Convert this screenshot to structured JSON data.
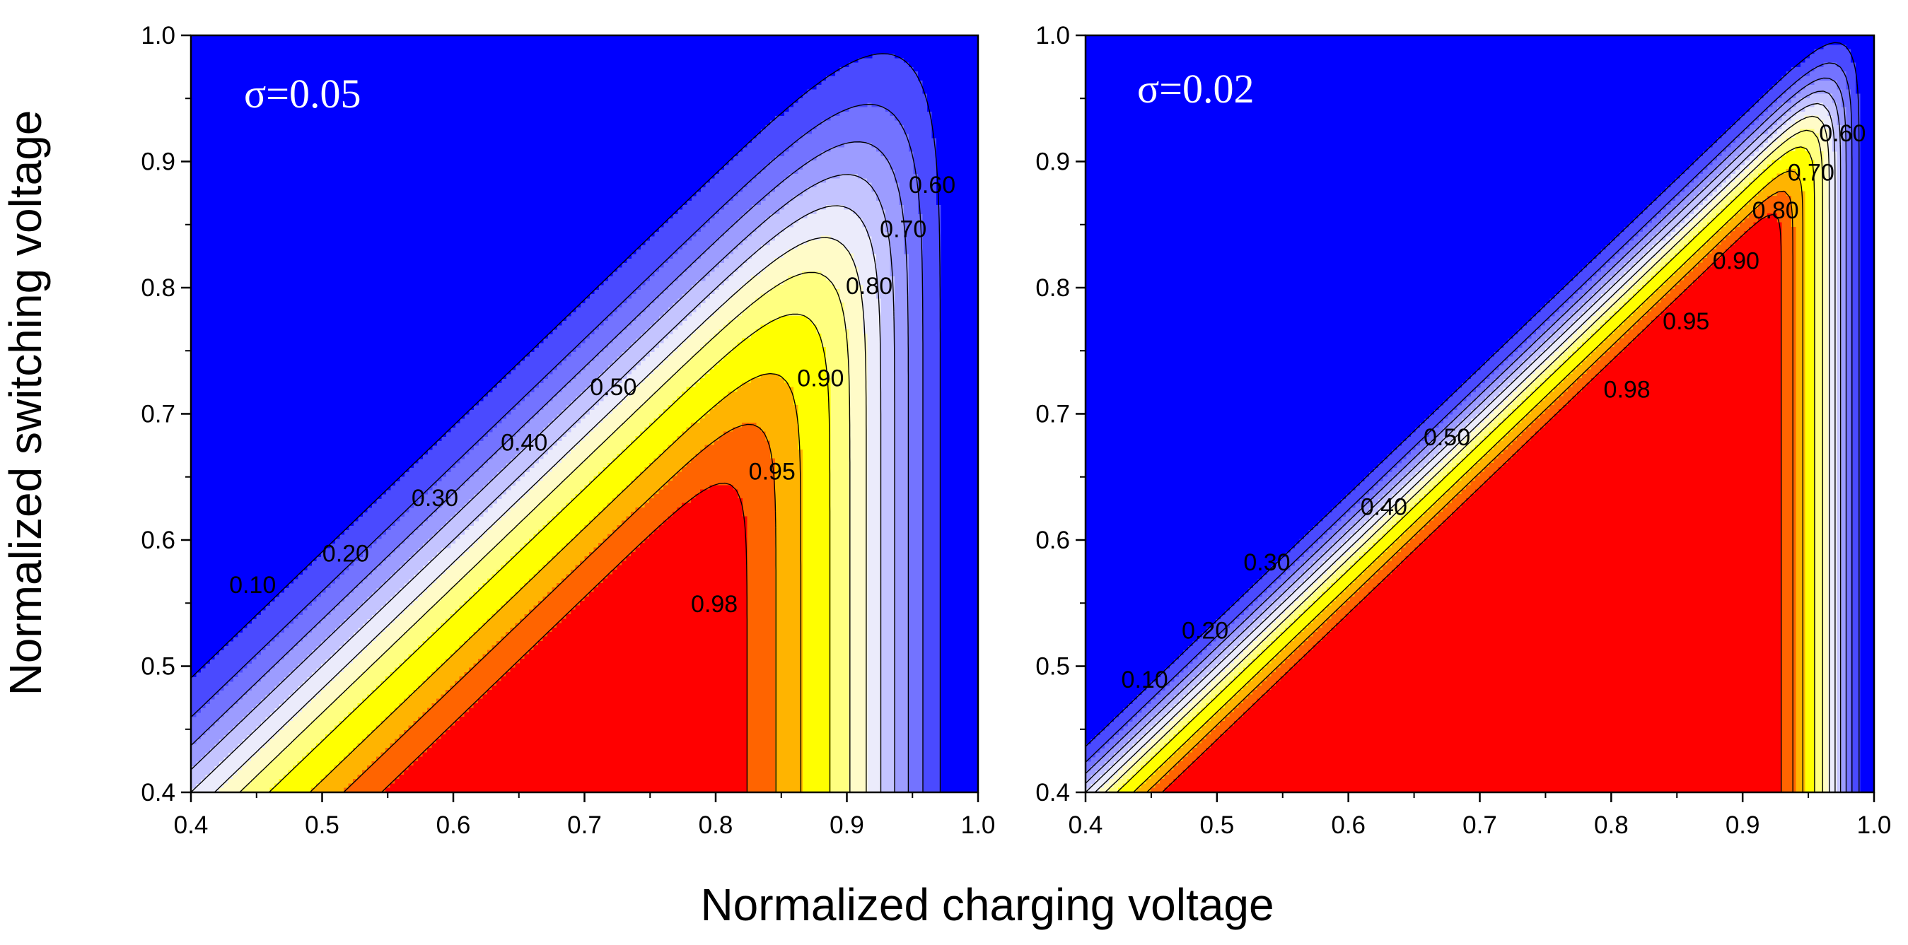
{
  "figure": {
    "ylabel": "Normalized switching voltage",
    "xlabel": "Normalized charging voltage"
  },
  "colors": {
    "background_region": "#0000ff",
    "contour_line": "#000000",
    "levels": {
      "0.10": "#2525ff",
      "0.20": "#4a4aff",
      "0.30": "#7373ff",
      "0.40": "#9c9cff",
      "0.50": "#c4c4ff",
      "0.60": "#ebebfb",
      "0.70": "#fffbc8",
      "0.80": "#ffff80",
      "0.90": "#ffff00",
      "0.95": "#ffb400",
      "0.98": "#ff6400",
      "1.00": "#ff0000"
    }
  },
  "chart_data": [
    {
      "type": "contour",
      "annotation": "σ=0.05",
      "sigma": 0.05,
      "xlabel": "Normalized charging voltage",
      "ylabel": "Normalized switching voltage",
      "xlim": [
        0.4,
        1.0
      ],
      "ylim": [
        0.4,
        1.0
      ],
      "xticks": [
        "0.4",
        "0.5",
        "0.6",
        "0.7",
        "0.8",
        "0.9",
        "1.0"
      ],
      "yticks": [
        "0.4",
        "0.5",
        "0.6",
        "0.7",
        "0.8",
        "0.9",
        "1.0"
      ],
      "levels": [
        0.1,
        0.2,
        0.3,
        0.4,
        0.5,
        0.6,
        0.7,
        0.8,
        0.9,
        0.95,
        0.98
      ],
      "contour_labels": [
        {
          "text": "0.10",
          "x": 0.447,
          "y": 0.563
        },
        {
          "text": "0.20",
          "x": 0.518,
          "y": 0.588
        },
        {
          "text": "0.30",
          "x": 0.586,
          "y": 0.632
        },
        {
          "text": "0.40",
          "x": 0.654,
          "y": 0.676
        },
        {
          "text": "0.50",
          "x": 0.722,
          "y": 0.72
        },
        {
          "text": "0.60",
          "x": 0.965,
          "y": 0.88
        },
        {
          "text": "0.70",
          "x": 0.943,
          "y": 0.845
        },
        {
          "text": "0.80",
          "x": 0.917,
          "y": 0.8
        },
        {
          "text": "0.90",
          "x": 0.88,
          "y": 0.727
        },
        {
          "text": "0.95",
          "x": 0.843,
          "y": 0.653
        },
        {
          "text": "0.98",
          "x": 0.799,
          "y": 0.548
        }
      ]
    },
    {
      "type": "contour",
      "annotation": "σ=0.02",
      "sigma": 0.02,
      "xlabel": "Normalized charging voltage",
      "ylabel": "Normalized switching voltage",
      "xlim": [
        0.4,
        1.0
      ],
      "ylim": [
        0.4,
        1.0
      ],
      "xticks": [
        "0.4",
        "0.5",
        "0.6",
        "0.7",
        "0.8",
        "0.9",
        "1.0"
      ],
      "yticks": [
        "0.4",
        "0.5",
        "0.6",
        "0.7",
        "0.8",
        "0.9",
        "1.0"
      ],
      "levels": [
        0.1,
        0.2,
        0.3,
        0.4,
        0.5,
        0.6,
        0.7,
        0.8,
        0.9,
        0.95,
        0.98
      ],
      "contour_labels": [
        {
          "text": "0.10",
          "x": 0.445,
          "y": 0.488
        },
        {
          "text": "0.20",
          "x": 0.491,
          "y": 0.527
        },
        {
          "text": "0.30",
          "x": 0.538,
          "y": 0.581
        },
        {
          "text": "0.40",
          "x": 0.627,
          "y": 0.625
        },
        {
          "text": "0.50",
          "x": 0.675,
          "y": 0.68
        },
        {
          "text": "0.60",
          "x": 0.976,
          "y": 0.921
        },
        {
          "text": "0.70",
          "x": 0.952,
          "y": 0.89
        },
        {
          "text": "0.80",
          "x": 0.925,
          "y": 0.86
        },
        {
          "text": "0.90",
          "x": 0.895,
          "y": 0.82
        },
        {
          "text": "0.95",
          "x": 0.857,
          "y": 0.772
        },
        {
          "text": "0.98",
          "x": 0.812,
          "y": 0.718
        }
      ]
    }
  ]
}
